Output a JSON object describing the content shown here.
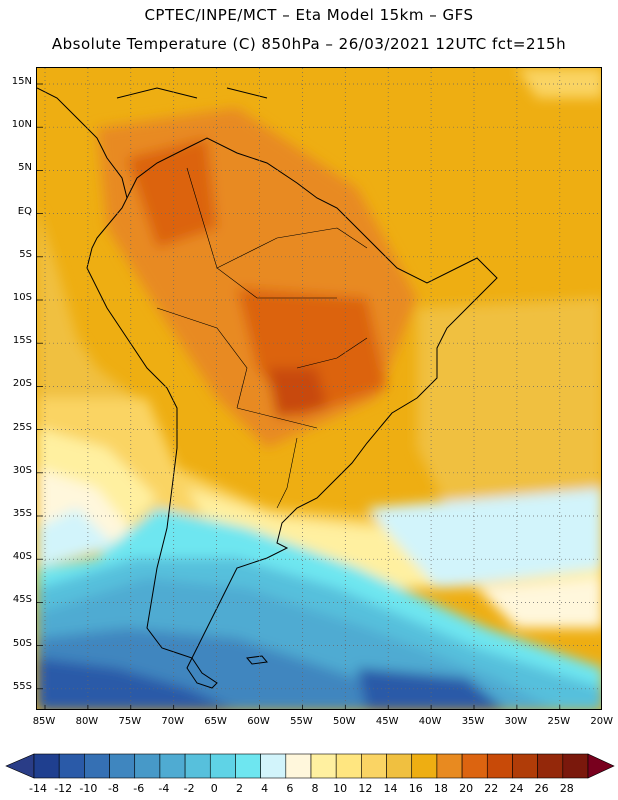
{
  "header": {
    "title_line1": "CPTEC/INPE/MCT –  Eta Model 15km – GFS",
    "title_line2": "Absolute Temperature (C) 850hPa – 26/03/2021 12UTC fct=215h"
  },
  "map": {
    "region": "South America",
    "variable": "Absolute Temperature (C) 850hPa",
    "lat_labels": [
      "15N",
      "10N",
      "5N",
      "EQ",
      "5S",
      "10S",
      "15S",
      "20S",
      "25S",
      "30S",
      "35S",
      "40S",
      "45S",
      "50S",
      "55S"
    ],
    "lon_labels": [
      "85W",
      "80W",
      "75W",
      "70W",
      "65W",
      "60W",
      "55W",
      "50W",
      "45W",
      "40W",
      "35W",
      "30W",
      "25W",
      "20W"
    ]
  },
  "colorbar": {
    "labels": [
      "-14",
      "-12",
      "-10",
      "-8",
      "-6",
      "-4",
      "-2",
      "0",
      "2",
      "4",
      "6",
      "8",
      "10",
      "12",
      "14",
      "16",
      "18",
      "20",
      "22",
      "24",
      "26",
      "28"
    ],
    "colors": [
      "#1f3f8f",
      "#2a5aa8",
      "#3570b4",
      "#3f86bf",
      "#4799c8",
      "#4fabd2",
      "#57c0dc",
      "#5fd3e6",
      "#6ee6f0",
      "#d2f4fb",
      "#fff7dc",
      "#fff0a0",
      "#ffe680",
      "#fad464",
      "#f0c040",
      "#eeae12",
      "#e88a20",
      "#dc6410",
      "#c84a08",
      "#b03c08",
      "#94280a",
      "#7a180c"
    ],
    "under_color": "#2a3d87",
    "over_color": "#78001e"
  }
}
